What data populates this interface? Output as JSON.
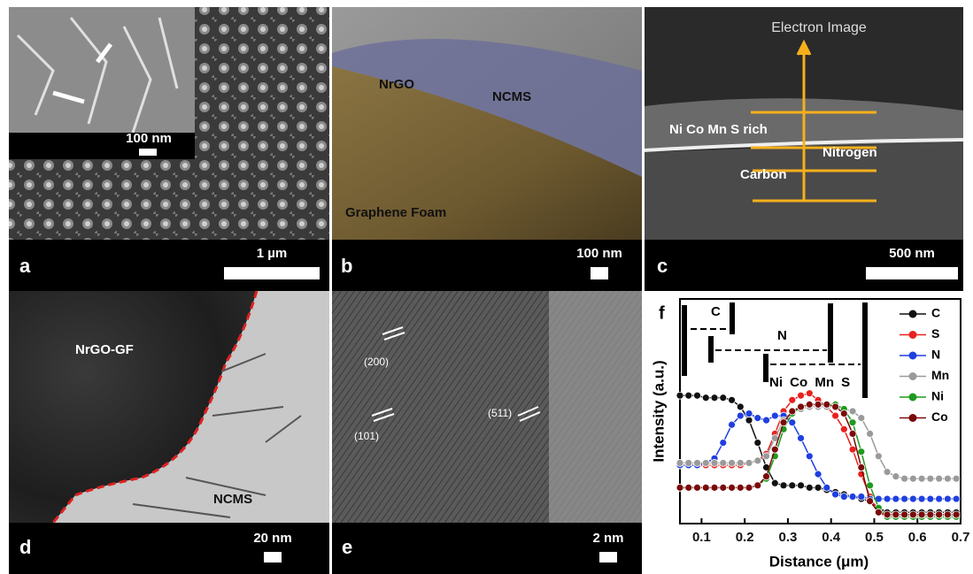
{
  "panels": {
    "a": {
      "label": "a",
      "scale_bar": "1 µm",
      "inset_scale_bar": "100 nm"
    },
    "b": {
      "label": "b",
      "scale_bar": "100 nm",
      "annotations": [
        "NrGO",
        "NCMS",
        "Graphene Foam"
      ]
    },
    "c": {
      "label": "c",
      "scale_bar": "500 nm",
      "title": "Electron Image",
      "annotations": [
        "Ni Co Mn S rich",
        "Nitrogen",
        "Carbon"
      ]
    },
    "d": {
      "label": "d",
      "scale_bar": "20 nm",
      "annotations": [
        "NrGO-GF",
        "NCMS"
      ]
    },
    "e": {
      "label": "e",
      "scale_bar": "2 nm",
      "annotations": [
        "(200)",
        "(101)",
        "(511)"
      ]
    }
  },
  "chart_data": {
    "type": "line",
    "panel_label": "f",
    "x_label": "Distance (μm)",
    "y_label": "Intensity (a.u.)",
    "annotations": [
      "C",
      "N",
      "Ni Co Mn S"
    ],
    "xlim": [
      0.05,
      0.7
    ],
    "xticks": [
      0.1,
      0.2,
      0.3,
      0.4,
      0.5,
      0.6,
      0.7
    ],
    "ylim": [
      0,
      100
    ],
    "x": [
      0.05,
      0.07,
      0.09,
      0.11,
      0.13,
      0.15,
      0.17,
      0.19,
      0.21,
      0.23,
      0.25,
      0.27,
      0.29,
      0.31,
      0.33,
      0.35,
      0.37,
      0.39,
      0.41,
      0.43,
      0.45,
      0.47,
      0.49,
      0.51,
      0.53,
      0.55,
      0.57,
      0.59,
      0.61,
      0.63,
      0.65,
      0.67,
      0.69
    ],
    "series": [
      {
        "name": "C",
        "color": "#111111",
        "values": [
          57,
          57,
          57,
          56,
          56,
          56,
          55,
          52,
          46,
          36,
          25,
          18,
          17,
          17,
          17,
          16,
          16,
          15,
          14,
          13,
          12,
          11,
          10,
          7,
          5,
          5,
          5,
          5,
          5,
          5,
          5,
          5,
          5
        ]
      },
      {
        "name": "S",
        "color": "#e8211e",
        "values": [
          26,
          26,
          26,
          26,
          26,
          26,
          26,
          26,
          27,
          28,
          31,
          40,
          50,
          55,
          57,
          58,
          55,
          52,
          48,
          42,
          33,
          22,
          12,
          5,
          3,
          3,
          3,
          3,
          3,
          3,
          3,
          3,
          3
        ]
      },
      {
        "name": "N",
        "color": "#1f3fe0",
        "values": [
          26,
          26,
          26,
          27,
          29,
          36,
          44,
          48,
          49,
          47,
          46,
          48,
          48,
          45,
          38,
          30,
          22,
          16,
          13,
          12,
          12,
          12,
          11,
          11,
          11,
          11,
          11,
          11,
          11,
          11,
          11,
          11,
          11
        ]
      },
      {
        "name": "Mn",
        "color": "#9a9a9a",
        "values": [
          27,
          27,
          27,
          27,
          27,
          27,
          27,
          27,
          27,
          28,
          30,
          38,
          46,
          50,
          51,
          52,
          52,
          52,
          52,
          51,
          50,
          47,
          40,
          30,
          23,
          21,
          20,
          20,
          20,
          20,
          20,
          20,
          20
        ]
      },
      {
        "name": "Ni",
        "color": "#1e9a1e",
        "values": [
          16,
          16,
          16,
          16,
          16,
          16,
          16,
          16,
          16,
          17,
          20,
          30,
          42,
          49,
          52,
          53,
          53,
          53,
          53,
          51,
          45,
          32,
          17,
          7,
          3,
          3,
          3,
          3,
          3,
          3,
          3,
          3,
          3
        ]
      },
      {
        "name": "Co",
        "color": "#7a0a0a",
        "values": [
          16,
          16,
          16,
          16,
          16,
          16,
          16,
          16,
          16,
          17,
          21,
          33,
          45,
          50,
          52,
          53,
          53,
          53,
          52,
          49,
          40,
          25,
          10,
          5,
          4,
          4,
          4,
          4,
          4,
          4,
          4,
          4,
          4
        ]
      }
    ]
  }
}
